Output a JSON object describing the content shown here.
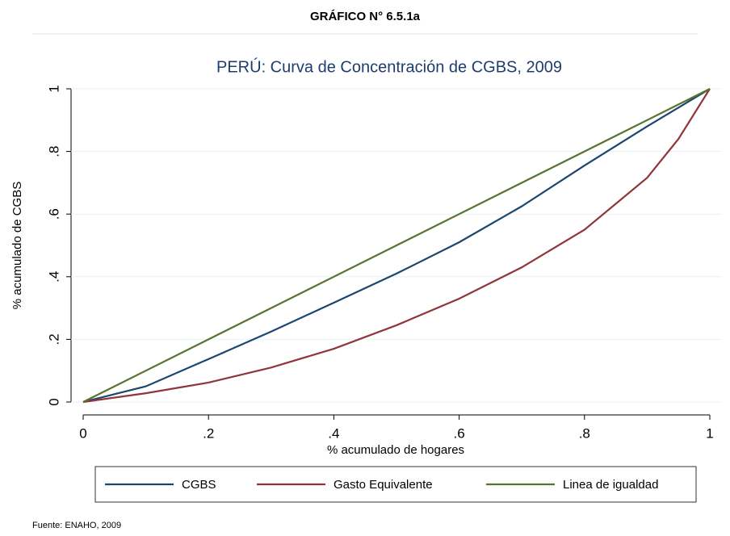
{
  "header": "GRÁFICO N° 6.5.1a",
  "footnote": "Fuente:  ENAHO, 2009",
  "chart_data": {
    "type": "line",
    "title": "PERÚ: Curva de Concentración de CGBS, 2009",
    "x_label": "% acumulado de hogares",
    "y_label": "% acumulado de CGBS",
    "x": [
      0,
      0.1,
      0.2,
      0.3,
      0.4,
      0.5,
      0.6,
      0.7,
      0.8,
      0.9,
      0.95,
      1
    ],
    "series": [
      {
        "name": "CGBS",
        "color": "#1a476f",
        "values": [
          0,
          0.05,
          0.137,
          0.225,
          0.317,
          0.41,
          0.51,
          0.625,
          0.755,
          0.88,
          0.94,
          1
        ]
      },
      {
        "name": "Gasto Equivalente",
        "color": "#90353b",
        "values": [
          0,
          0.028,
          0.062,
          0.11,
          0.17,
          0.245,
          0.33,
          0.43,
          0.55,
          0.716,
          0.84,
          1
        ]
      },
      {
        "name": "Linea de igualdad",
        "color": "#55752f",
        "values": [
          0,
          0.1,
          0.2,
          0.3,
          0.4,
          0.5,
          0.6,
          0.7,
          0.8,
          0.9,
          0.95,
          1
        ]
      }
    ],
    "xlim": [
      0,
      1
    ],
    "ylim": [
      0,
      1
    ],
    "xticks": [
      0,
      {
        "value": 0.2,
        "label": ".2"
      },
      {
        "value": 0.4,
        "label": ".4"
      },
      {
        "value": 0.6,
        "label": ".6"
      },
      {
        "value": 0.8,
        "label": ".8"
      },
      1
    ],
    "yticks": [
      0,
      {
        "value": 0.2,
        "label": ".2"
      },
      {
        "value": 0.4,
        "label": ".4"
      },
      {
        "value": 0.6,
        "label": ".6"
      },
      {
        "value": 0.8,
        "label": ".8"
      },
      1
    ],
    "grid": true,
    "legend": "bottom"
  }
}
